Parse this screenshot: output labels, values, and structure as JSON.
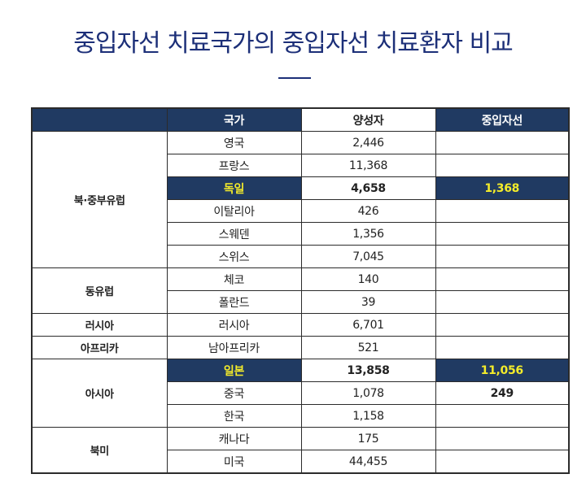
{
  "title": "중입자선 치료국가의 중입자선 치료환자 비교",
  "table": {
    "headers": {
      "region": "",
      "country": "국가",
      "patients": "양성자",
      "heavy_ion": "중입자선"
    },
    "rows": [
      {
        "region": "북·중부유럽",
        "country": "영국",
        "patients": "2,446",
        "heavy_ion": ""
      },
      {
        "country": "프랑스",
        "patients": "11,368",
        "heavy_ion": ""
      },
      {
        "country": "독일",
        "patients": "4,658",
        "heavy_ion": "1,368"
      },
      {
        "country": "이탈리아",
        "patients": "426",
        "heavy_ion": ""
      },
      {
        "country": "스웨덴",
        "patients": "1,356",
        "heavy_ion": ""
      },
      {
        "country": "스위스",
        "patients": "7,045",
        "heavy_ion": ""
      },
      {
        "region": "동유럽",
        "country": "체코",
        "patients": "140",
        "heavy_ion": ""
      },
      {
        "country": "폴란드",
        "patients": "39",
        "heavy_ion": ""
      },
      {
        "region": "러시아",
        "country": "러시아",
        "patients": "6,701",
        "heavy_ion": ""
      },
      {
        "region": "아프리카",
        "country": "남아프리카",
        "patients": "521",
        "heavy_ion": ""
      },
      {
        "region": "아시아",
        "country": "일본",
        "patients": "13,858",
        "heavy_ion": "11,056"
      },
      {
        "country": "중국",
        "patients": "1,078",
        "heavy_ion": "249"
      },
      {
        "country": "한국",
        "patients": "1,158",
        "heavy_ion": ""
      },
      {
        "region": "북미",
        "country": "캐나다",
        "patients": "175",
        "heavy_ion": ""
      },
      {
        "country": "미국",
        "patients": "44,455",
        "heavy_ion": ""
      }
    ]
  }
}
